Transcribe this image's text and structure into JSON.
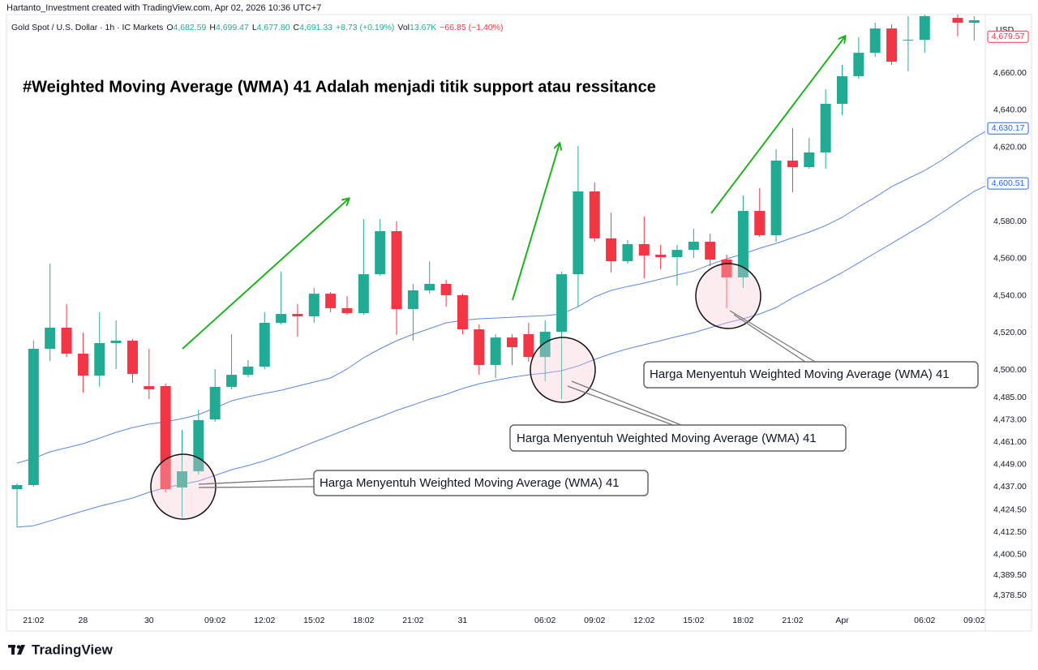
{
  "chart_data": {
    "type": "candlestick",
    "credit": "Hartanto_Investment created with TradingView.com, Apr 02, 2026 10:36 UTC+7",
    "legend": {
      "symbol": "Gold Spot / U.S. Dollar · 1h · IC Markets",
      "items": [
        {
          "label": "O",
          "value": "4,682.59"
        },
        {
          "label": "H",
          "value": "4,699.47"
        },
        {
          "label": "L",
          "value": "4,677.80"
        },
        {
          "label": "C",
          "value": "4,691.33"
        }
      ],
      "change": "+8.73 (+0.19%)",
      "volume_label": "Vol",
      "volume": "13.67K",
      "volume_change": "−66.85 (−1.40%)"
    },
    "currency": "USD",
    "title": "#Weighted Moving Average (WMA) 41 Adalah menjadi titik support atau ressitance",
    "annotations": [
      "Harga Menyentuh Weighted Moving Average (WMA) 41",
      "Harga Menyentuh Weighted Moving Average (WMA) 41",
      "Harga Menyentuh Weighted Moving Average (WMA) 41"
    ],
    "brand": "TradingView",
    "up_color": "#22ab94",
    "down_color": "#f23645",
    "categories": [
      null,
      "21:02",
      null,
      null,
      "28",
      null,
      null,
      null,
      "30",
      null,
      null,
      null,
      "09:02",
      null,
      null,
      "12:02",
      null,
      null,
      "15:02",
      null,
      null,
      "18:02",
      null,
      null,
      "21:02",
      null,
      null,
      "31",
      null,
      null,
      null,
      null,
      "06:02",
      null,
      null,
      "09:02",
      null,
      null,
      "12:02",
      null,
      null,
      "15:02",
      null,
      null,
      "18:02",
      null,
      null,
      "21:02",
      null,
      null,
      "Apr",
      null,
      null,
      null,
      null,
      "06:02",
      null,
      null,
      "09:02",
      null
    ],
    "open": [
      4435.8,
      4438.0,
      4511.4,
      4522.8,
      4508.8,
      4497.0,
      4514.5,
      4515.8,
      4491.3,
      4491.3,
      4436.7,
      4445.4,
      4473.4,
      4490.9,
      4497.4,
      4501.8,
      4525.4,
      4530.2,
      4528.9,
      4541.1,
      4533.3,
      4530.6,
      4551.6,
      4574.8,
      4532.8,
      4542.9,
      4546.4,
      4540.3,
      4521.9,
      4502.7,
      4517.5,
      4519.3,
      4507.0,
      4520.6,
      4551.6,
      4596.2,
      4570.9,
      4558.6,
      4567.8,
      4562.1,
      4560.8,
      4564.7,
      4569.1,
      4559.5,
      4549.9,
      4585.7,
      4572.6,
      4612.8,
      4609.3,
      4617.2,
      4643.4,
      4658.3,
      4670.9,
      4684.0,
      4677.5,
      4677.9,
      null,
      4689.7,
      4687.1,
      4687.1
    ],
    "high": [
      4438.9,
      4515.8,
      4557.3,
      4535.5,
      4520.2,
      4531.1,
      4526.7,
      4516.7,
      4511.4,
      4492.6,
      4467.7,
      4478.6,
      4500.5,
      4519.3,
      4505.3,
      4531.1,
      4552.9,
      4535.5,
      4544.2,
      4542.0,
      4539.8,
      4581.3,
      4581.3,
      4580.0,
      4546.4,
      4558.6,
      4548.6,
      4541.1,
      4524.5,
      4519.3,
      4519.3,
      4525.4,
      4526.7,
      4552.9,
      4620.7,
      4601.0,
      4584.8,
      4570.0,
      4582.7,
      4567.4,
      4567.4,
      4576.1,
      4573.5,
      4562.1,
      4594.0,
      4597.9,
      4618.9,
      4630.3,
      4625.0,
      4651.3,
      4664.4,
      4679.2,
      4687.1,
      4686.2,
      4690.6,
      4691.5,
      null,
      4691.5,
      4690.6,
      4688.4
    ],
    "low": [
      4415.3,
      4437.1,
      4504.9,
      4507.0,
      4487.8,
      4490.9,
      4500.5,
      4493.1,
      4484.3,
      4434.1,
      4420.5,
      4443.7,
      4472.1,
      4489.6,
      4496.1,
      4500.5,
      4524.5,
      4518.0,
      4525.4,
      4531.1,
      4529.8,
      4529.8,
      4550.8,
      4518.9,
      4515.8,
      4541.1,
      4534.1,
      4519.3,
      4497.4,
      4495.7,
      4502.7,
      4504.4,
      4493.9,
      4484.3,
      4534.1,
      4569.1,
      4552.5,
      4557.3,
      4549.4,
      4554.2,
      4545.5,
      4560.4,
      4556.0,
      4533.3,
      4544.2,
      4571.7,
      4569.1,
      4595.8,
      4608.4,
      4608.4,
      4637.3,
      4656.9,
      4668.7,
      4664.4,
      4660.9,
      4670.9,
      null,
      4679.7,
      4677.5,
      4677.5
    ],
    "close": [
      4438.0,
      4511.4,
      4522.8,
      4508.8,
      4497.0,
      4514.5,
      4515.8,
      4497.9,
      4489.6,
      4435.8,
      4445.4,
      4473.0,
      4490.9,
      4497.4,
      4501.8,
      4525.4,
      4530.2,
      4528.9,
      4541.1,
      4533.3,
      4530.6,
      4551.6,
      4574.8,
      4532.8,
      4542.9,
      4546.4,
      4540.3,
      4521.9,
      4502.7,
      4517.5,
      4512.3,
      4507.0,
      4520.6,
      4551.6,
      4596.2,
      4570.9,
      4558.6,
      4567.8,
      4561.7,
      4560.8,
      4564.7,
      4569.1,
      4559.5,
      4549.9,
      4585.7,
      4572.6,
      4612.8,
      4609.3,
      4617.2,
      4643.4,
      4658.3,
      4670.9,
      4684.0,
      4666.1,
      4677.9,
      4690.6,
      null,
      4687.1,
      4688.4,
      4679.57
    ],
    "lines": [
      {
        "color": "#5b87e8",
        "values": [
          4449.8,
          4452.4,
          4455.9,
          4458.1,
          4460.3,
          4463.3,
          4466.4,
          4469.0,
          4470.8,
          4472.1,
          4473.8,
          4476.0,
          4479.5,
          4483.4,
          4485.6,
          4487.4,
          4489.1,
          4491.3,
          4493.5,
          4495.7,
          4500.5,
          4506.6,
          4511.4,
          4515.8,
          4519.3,
          4522.3,
          4525.4,
          4526.7,
          4527.6,
          4528.0,
          4528.4,
          4528.9,
          4529.3,
          4530.2,
          4534.1,
          4539.4,
          4542.9,
          4545.0,
          4546.8,
          4549.0,
          4551.2,
          4553.3,
          4556.8,
          4559.9,
          4562.5,
          4565.6,
          4568.2,
          4571.3,
          4574.3,
          4577.8,
          4582.2,
          4587.9,
          4593.1,
          4598.8,
          4603.2,
          4607.5,
          4612.8,
          4618.9,
          4625.0,
          4630.17
        ]
      },
      {
        "color": "#5b87e8",
        "values": [
          4415.3,
          4416.1,
          4418.7,
          4421.4,
          4424.0,
          4426.6,
          4428.8,
          4431.0,
          4434.1,
          4436.7,
          4438.4,
          4440.2,
          4443.2,
          4446.3,
          4448.5,
          4451.1,
          4454.2,
          4457.7,
          4461.2,
          4464.6,
          4468.1,
          4471.6,
          4474.7,
          4478.2,
          4481.2,
          4484.3,
          4486.9,
          4490.0,
          4492.6,
          4494.4,
          4496.1,
          4497.4,
          4498.3,
          4499.6,
          4502.2,
          4505.7,
          4508.8,
          4511.4,
          4513.6,
          4515.8,
          4518.0,
          4520.1,
          4522.8,
          4525.4,
          4527.6,
          4530.2,
          4533.7,
          4538.9,
          4543.3,
          4547.7,
          4552.5,
          4557.7,
          4563.0,
          4568.2,
          4573.5,
          4578.7,
          4584.4,
          4590.5,
          4596.2,
          4600.51
        ]
      }
    ],
    "price_labels": [
      {
        "value": 4679.57,
        "label": "4,679.57",
        "color": "#f23645"
      },
      {
        "value": 4630.17,
        "label": "4,630.17",
        "color": "#2962ff"
      },
      {
        "value": 4600.51,
        "label": "4,600.51",
        "color": "#2962ff"
      }
    ],
    "ylim": [
      4370.7,
      4690.6
    ],
    "yticks": [
      {
        "value": 4660,
        "label": "4,660.00"
      },
      {
        "value": 4640,
        "label": "4,640.00"
      },
      {
        "value": 4620,
        "label": "4,620.00"
      },
      {
        "value": 4580,
        "label": "4,580.00"
      },
      {
        "value": 4560,
        "label": "4,560.00"
      },
      {
        "value": 4540,
        "label": "4,540.00"
      },
      {
        "value": 4520,
        "label": "4,520.00"
      },
      {
        "value": 4500,
        "label": "4,500.00"
      },
      {
        "value": 4485,
        "label": "4,485.00"
      },
      {
        "value": 4473,
        "label": "4,473.00"
      },
      {
        "value": 4461,
        "label": "4,461.00"
      },
      {
        "value": 4449,
        "label": "4,449.00"
      },
      {
        "value": 4437,
        "label": "4,437.00"
      },
      {
        "value": 4424.5,
        "label": "4,424.50"
      },
      {
        "value": 4412.5,
        "label": "4,412.50"
      },
      {
        "value": 4400.5,
        "label": "4,400.50"
      },
      {
        "value": 4389.5,
        "label": "4,389.50"
      },
      {
        "value": 4378.5,
        "label": "4,378.50"
      }
    ],
    "grid": false
  }
}
